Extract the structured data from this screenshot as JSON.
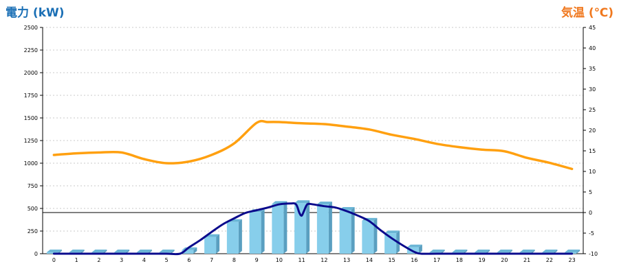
{
  "colors": {
    "power_title": "#1a6fb5",
    "temp_title": "#f0781e",
    "bar_face": "#87ceeb",
    "bar_side": "#5a9fc0",
    "bar_top": "#6bb6d6",
    "temp_line": "#ffa010",
    "power_line": "#0a0a8c",
    "grid": "#c8c8c8",
    "axis": "#000000"
  },
  "chart_data": {
    "type": "bar",
    "title": "",
    "left_axis": {
      "label": "電力 (kW)",
      "ylim": [
        0,
        2500
      ],
      "ticks": [
        0,
        250,
        500,
        750,
        1000,
        1250,
        1500,
        1750,
        2000,
        2250,
        2500
      ]
    },
    "right_axis": {
      "label": "気温 (℃)",
      "ylim": [
        -10,
        45
      ],
      "ticks": [
        -10,
        -5,
        0,
        5,
        10,
        15,
        20,
        25,
        30,
        35,
        40,
        45
      ]
    },
    "categories": [
      "0",
      "1",
      "2",
      "3",
      "4",
      "5",
      "6",
      "7",
      "8",
      "9",
      "10",
      "11",
      "12",
      "13",
      "14",
      "15",
      "16",
      "17",
      "18",
      "19",
      "20",
      "21",
      "22",
      "23"
    ],
    "grid": true,
    "reference_line": {
      "axis": "right",
      "value": 0
    },
    "series": [
      {
        "kind": "bar",
        "axis": "left",
        "values": [
          15,
          15,
          15,
          15,
          15,
          15,
          40,
          185,
          350,
          460,
          550,
          560,
          545,
          485,
          365,
          225,
          70,
          15,
          15,
          15,
          15,
          15,
          15,
          15
        ]
      },
      {
        "kind": "line",
        "axis": "right",
        "x": [
          0,
          1,
          2,
          3,
          4,
          5,
          6,
          7,
          8,
          9,
          9.5,
          10,
          11,
          12,
          13,
          14,
          15,
          16,
          17,
          18,
          19,
          20,
          21,
          22,
          23
        ],
        "values": [
          14,
          14.4,
          14.6,
          14.6,
          13,
          12,
          12.4,
          14,
          16.8,
          21.8,
          22,
          22,
          21.7,
          21.5,
          20.9,
          20.2,
          18.9,
          17.9,
          16.7,
          15.9,
          15.3,
          14.9,
          13.3,
          12.1,
          10.6
        ]
      },
      {
        "kind": "line",
        "axis": "left",
        "x": [
          0,
          1,
          2,
          3,
          4,
          5,
          5.6,
          6,
          6.5,
          7,
          7.5,
          8,
          8.5,
          9,
          9.5,
          10,
          10.5,
          10.75,
          10.9,
          11,
          11.1,
          11.25,
          11.5,
          12,
          12.5,
          13,
          13.5,
          14,
          14.5,
          15,
          15.5,
          16,
          16.3,
          17,
          18,
          19,
          20,
          21,
          22,
          23
        ],
        "values": [
          0,
          0,
          0,
          0,
          0,
          0,
          0,
          70,
          150,
          240,
          325,
          390,
          450,
          480,
          510,
          545,
          555,
          545,
          450,
          420,
          470,
          545,
          545,
          525,
          510,
          470,
          420,
          360,
          260,
          170,
          90,
          20,
          0,
          0,
          0,
          0,
          0,
          0,
          0,
          0
        ]
      }
    ]
  }
}
